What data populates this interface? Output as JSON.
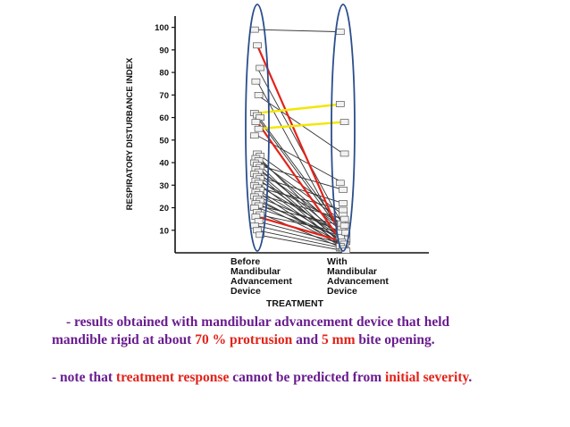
{
  "chart_data": {
    "type": "scatter",
    "title": "",
    "ylabel": "RESPIRATORY DISTURBANCE INDEX",
    "xlabel": "TREATMENT",
    "ylim": [
      0,
      105
    ],
    "yticks": [
      10,
      20,
      30,
      40,
      50,
      60,
      70,
      80,
      90,
      100
    ],
    "categories": [
      "Before Mandibular Advancement Device",
      "With Mandibular Advancement Device"
    ],
    "category_labels": [
      [
        "Before",
        "Mandibular",
        "Advancement",
        "Device"
      ],
      [
        "With",
        "Mandibular",
        "Advancement",
        "Device"
      ]
    ],
    "grid": false,
    "colors": {
      "default": "#333333",
      "red": "#e2231a",
      "yellow": "#f2e600",
      "ellipse": "#2b4e8c"
    },
    "pairs": [
      {
        "before": 99,
        "with": 98,
        "color": "default"
      },
      {
        "before": 92,
        "with": 5,
        "color": "red"
      },
      {
        "before": 82,
        "with": 12,
        "color": "default"
      },
      {
        "before": 76,
        "with": 6,
        "color": "default"
      },
      {
        "before": 70,
        "with": 44,
        "color": "default"
      },
      {
        "before": 62,
        "with": 66,
        "color": "yellow"
      },
      {
        "before": 61,
        "with": 10,
        "color": "default"
      },
      {
        "before": 60,
        "with": 8,
        "color": "default"
      },
      {
        "before": 58,
        "with": 4,
        "color": "red"
      },
      {
        "before": 55,
        "with": 58,
        "color": "yellow"
      },
      {
        "before": 52,
        "with": 31,
        "color": "default"
      },
      {
        "before": 44,
        "with": 17,
        "color": "default"
      },
      {
        "before": 43,
        "with": 5,
        "color": "default"
      },
      {
        "before": 42,
        "with": 9,
        "color": "default"
      },
      {
        "before": 41,
        "with": 14,
        "color": "default"
      },
      {
        "before": 40,
        "with": 3,
        "color": "default"
      },
      {
        "before": 39,
        "with": 28,
        "color": "default"
      },
      {
        "before": 38,
        "with": 7,
        "color": "default"
      },
      {
        "before": 37,
        "with": 11,
        "color": "default"
      },
      {
        "before": 36,
        "with": 4,
        "color": "default"
      },
      {
        "before": 35,
        "with": 2,
        "color": "default"
      },
      {
        "before": 34,
        "with": 22,
        "color": "default"
      },
      {
        "before": 33,
        "with": 6,
        "color": "default"
      },
      {
        "before": 32,
        "with": 13,
        "color": "default"
      },
      {
        "before": 31,
        "with": 3,
        "color": "default"
      },
      {
        "before": 30,
        "with": 8,
        "color": "default"
      },
      {
        "before": 29,
        "with": 19,
        "color": "default"
      },
      {
        "before": 28,
        "with": 5,
        "color": "default"
      },
      {
        "before": 27,
        "with": 2,
        "color": "default"
      },
      {
        "before": 26,
        "with": 15,
        "color": "default"
      },
      {
        "before": 25,
        "with": 9,
        "color": "default"
      },
      {
        "before": 24,
        "with": 4,
        "color": "default"
      },
      {
        "before": 23,
        "with": 6,
        "color": "default"
      },
      {
        "before": 22,
        "with": 3,
        "color": "default"
      },
      {
        "before": 21,
        "with": 12,
        "color": "default"
      },
      {
        "before": 20,
        "with": 7,
        "color": "default"
      },
      {
        "before": 18,
        "with": 2,
        "color": "default"
      },
      {
        "before": 17,
        "with": 9,
        "color": "default"
      },
      {
        "before": 16,
        "with": 5,
        "color": "red"
      },
      {
        "before": 14,
        "with": 4,
        "color": "default"
      },
      {
        "before": 12,
        "with": 3,
        "color": "default"
      },
      {
        "before": 10,
        "with": 2,
        "color": "default"
      },
      {
        "before": 8,
        "with": 1,
        "color": "default"
      }
    ]
  },
  "caption": {
    "line1": "- results obtained with mandibular advancement device that held",
    "line2_a": "mandible rigid at about ",
    "line2_b": "70 %  protrusion",
    "line2_c": " and ",
    "line2_d": "5 mm",
    "line2_e": " bite opening.",
    "line3_a": "- note that ",
    "line3_b": "treatment response",
    "line3_c": " cannot be predicted from ",
    "line3_d": "initial severity",
    "line3_e": "."
  }
}
